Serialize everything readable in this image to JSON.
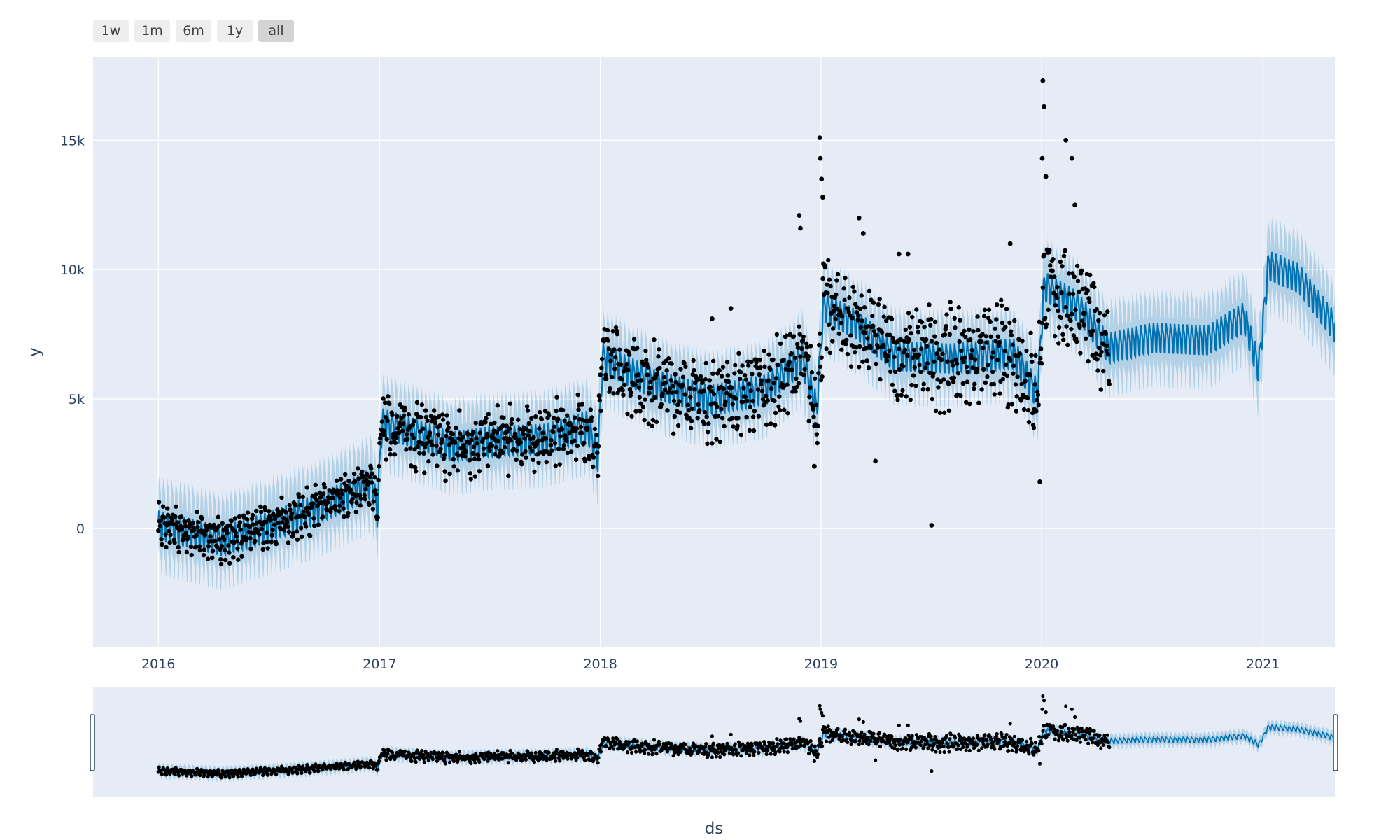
{
  "range_selector": {
    "buttons": [
      {
        "label": "1w",
        "active": false
      },
      {
        "label": "1m",
        "active": false
      },
      {
        "label": "6m",
        "active": false
      },
      {
        "label": "1y",
        "active": false
      },
      {
        "label": "all",
        "active": true
      }
    ]
  },
  "colors": {
    "plot_bg": "#e5ecf6",
    "forecast": "#0072B2",
    "interval": "#0072B2",
    "actual": "#000000",
    "grid": "#ffffff"
  },
  "chart_data": {
    "type": "scatter",
    "title": "",
    "xlabel": "ds",
    "ylabel": "y",
    "x_range": [
      "2015-09-15",
      "2021-04-30"
    ],
    "ylim": [
      -4600,
      18200
    ],
    "x_ticks": [
      "2016",
      "2017",
      "2018",
      "2019",
      "2020",
      "2021"
    ],
    "y_ticks": [
      0,
      5000,
      10000,
      15000
    ],
    "y_tick_labels": [
      "0",
      "5k",
      "10k",
      "15k"
    ],
    "grid": true,
    "legend": "none",
    "rangeslider": true,
    "series": [
      {
        "kind": "forecast_line",
        "weekly_amplitude": 650,
        "trend": [
          [
            "2016-01-01",
            150
          ],
          [
            "2016-04-15",
            -450
          ],
          [
            "2016-07-01",
            100
          ],
          [
            "2016-10-01",
            900
          ],
          [
            "2016-12-20",
            1800
          ],
          [
            "2016-12-28",
            600
          ],
          [
            "2017-01-05",
            4100
          ],
          [
            "2017-03-01",
            3700
          ],
          [
            "2017-05-01",
            3200
          ],
          [
            "2017-07-01",
            3400
          ],
          [
            "2017-10-01",
            3500
          ],
          [
            "2017-12-10",
            4000
          ],
          [
            "2017-12-28",
            2800
          ],
          [
            "2018-01-05",
            6600
          ],
          [
            "2018-04-01",
            5600
          ],
          [
            "2018-07-01",
            5000
          ],
          [
            "2018-10-01",
            5400
          ],
          [
            "2018-12-01",
            6600
          ],
          [
            "2018-12-25",
            4600
          ],
          [
            "2019-01-05",
            8600
          ],
          [
            "2019-03-01",
            7900
          ],
          [
            "2019-05-01",
            6700
          ],
          [
            "2019-08-01",
            6600
          ],
          [
            "2019-11-15",
            6800
          ],
          [
            "2019-12-25",
            5200
          ],
          [
            "2020-01-05",
            9400
          ],
          [
            "2020-03-01",
            8600
          ],
          [
            "2020-04-20",
            7000
          ],
          [
            "2020-07-01",
            7400
          ],
          [
            "2020-10-01",
            7300
          ],
          [
            "2020-12-01",
            8200
          ],
          [
            "2020-12-25",
            6200
          ],
          [
            "2021-01-10",
            10200
          ],
          [
            "2021-03-01",
            9700
          ],
          [
            "2021-04-30",
            7800
          ]
        ]
      },
      {
        "kind": "uncertainty_band",
        "half_width": 1350
      },
      {
        "kind": "actual_points",
        "start": "2016-01-01",
        "end": "2020-04-22",
        "spread": 1100,
        "outliers": [
          [
            "2018-12-30",
            15100
          ],
          [
            "2018-12-31",
            14300
          ],
          [
            "2019-01-02",
            13500
          ],
          [
            "2019-01-04",
            12800
          ],
          [
            "2018-11-26",
            12100
          ],
          [
            "2018-11-28",
            11600
          ],
          [
            "2019-03-05",
            12000
          ],
          [
            "2019-03-12",
            11400
          ],
          [
            "2020-01-03",
            17300
          ],
          [
            "2020-01-05",
            16300
          ],
          [
            "2020-01-02",
            14300
          ],
          [
            "2020-01-08",
            13600
          ],
          [
            "2020-02-10",
            15000
          ],
          [
            "2020-02-20",
            14300
          ],
          [
            "2020-02-25",
            12500
          ],
          [
            "2019-07-03",
            120
          ],
          [
            "2019-12-29",
            1800
          ],
          [
            "2019-04-01",
            2600
          ],
          [
            "2018-12-21",
            2400
          ],
          [
            "2019-11-10",
            11000
          ],
          [
            "2018-08-05",
            8500
          ],
          [
            "2018-07-05",
            8100
          ],
          [
            "2019-05-10",
            10600
          ],
          [
            "2019-05-25",
            10600
          ]
        ]
      }
    ]
  }
}
